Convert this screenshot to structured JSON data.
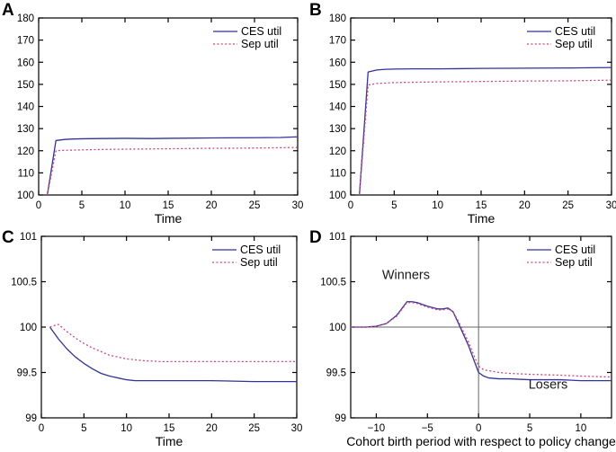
{
  "colors": {
    "ces_line": "#32329b",
    "sep_line": "#d2457f",
    "axis": "#000000",
    "reference_line": "#666666",
    "background": "#ffffff"
  },
  "chart_data": [
    {
      "type": "line",
      "panel_label": "A",
      "title": "",
      "xlabel": "Time",
      "ylabel": "",
      "xlim": [
        0,
        30
      ],
      "ylim": [
        100,
        180
      ],
      "xticks": [
        0,
        5,
        10,
        15,
        20,
        25,
        30
      ],
      "yticks": [
        100,
        110,
        120,
        130,
        140,
        150,
        160,
        170,
        180
      ],
      "grid": false,
      "legend_position": "top-right",
      "series": [
        {
          "name": "CES util",
          "color": "#32329b",
          "dash": "solid",
          "points": [
            [
              1,
              100
            ],
            [
              2,
              124.6
            ],
            [
              3,
              125.1
            ],
            [
              4,
              125.3
            ],
            [
              5,
              125.4
            ],
            [
              7,
              125.5
            ],
            [
              10,
              125.6
            ],
            [
              13,
              125.5
            ],
            [
              15,
              125.6
            ],
            [
              20,
              125.8
            ],
            [
              25,
              125.9
            ],
            [
              28,
              126.0
            ],
            [
              30,
              126.3
            ]
          ]
        },
        {
          "name": "Sep util",
          "color": "#d2457f",
          "dash": "dotted",
          "points": [
            [
              1,
              100
            ],
            [
              2,
              120.0
            ],
            [
              3,
              120.2
            ],
            [
              5,
              120.4
            ],
            [
              8,
              120.6
            ],
            [
              10,
              120.7
            ],
            [
              15,
              120.9
            ],
            [
              20,
              121.1
            ],
            [
              25,
              121.2
            ],
            [
              30,
              121.5
            ]
          ]
        }
      ],
      "reference_lines": [],
      "annotations": []
    },
    {
      "type": "line",
      "panel_label": "B",
      "title": "",
      "xlabel": "Time",
      "ylabel": "",
      "xlim": [
        0,
        30
      ],
      "ylim": [
        100,
        180
      ],
      "xticks": [
        0,
        5,
        10,
        15,
        20,
        25,
        30
      ],
      "yticks": [
        100,
        110,
        120,
        130,
        140,
        150,
        160,
        170,
        180
      ],
      "grid": false,
      "legend_position": "top-right",
      "series": [
        {
          "name": "CES util",
          "color": "#32329b",
          "dash": "solid",
          "points": [
            [
              1,
              100
            ],
            [
              2,
              155.6
            ],
            [
              3,
              156.5
            ],
            [
              4,
              156.8
            ],
            [
              5,
              156.9
            ],
            [
              7,
              157.0
            ],
            [
              10,
              157.0
            ],
            [
              15,
              157.2
            ],
            [
              20,
              157.3
            ],
            [
              25,
              157.4
            ],
            [
              30,
              157.6
            ]
          ]
        },
        {
          "name": "Sep util",
          "color": "#d2457f",
          "dash": "dotted",
          "points": [
            [
              1,
              100
            ],
            [
              2,
              149.7
            ],
            [
              3,
              150.4
            ],
            [
              5,
              150.8
            ],
            [
              8,
              151.0
            ],
            [
              10,
              151.1
            ],
            [
              15,
              151.3
            ],
            [
              20,
              151.5
            ],
            [
              25,
              151.6
            ],
            [
              30,
              151.9
            ]
          ]
        }
      ],
      "reference_lines": [],
      "annotations": []
    },
    {
      "type": "line",
      "panel_label": "C",
      "title": "",
      "xlabel": "Time",
      "ylabel": "",
      "xlim": [
        0,
        30
      ],
      "ylim": [
        99,
        101
      ],
      "xticks": [
        0,
        5,
        10,
        15,
        20,
        25,
        30
      ],
      "yticks": [
        99,
        99.5,
        100,
        100.5,
        101
      ],
      "grid": false,
      "legend_position": "top-right",
      "series": [
        {
          "name": "CES util",
          "color": "#32329b",
          "dash": "solid",
          "points": [
            [
              1,
              100
            ],
            [
              2,
              99.87
            ],
            [
              3,
              99.76
            ],
            [
              4,
              99.67
            ],
            [
              5,
              99.6
            ],
            [
              6,
              99.54
            ],
            [
              7,
              99.49
            ],
            [
              8,
              99.46
            ],
            [
              9,
              99.44
            ],
            [
              10,
              99.42
            ],
            [
              11,
              99.41
            ],
            [
              12,
              99.41
            ],
            [
              15,
              99.41
            ],
            [
              20,
              99.41
            ],
            [
              25,
              99.4
            ],
            [
              30,
              99.4
            ]
          ]
        },
        {
          "name": "Sep util",
          "color": "#d2457f",
          "dash": "dotted",
          "points": [
            [
              1,
              100
            ],
            [
              2,
              100.03
            ],
            [
              3,
              99.95
            ],
            [
              4,
              99.88
            ],
            [
              5,
              99.82
            ],
            [
              6,
              99.77
            ],
            [
              7,
              99.73
            ],
            [
              8,
              99.69
            ],
            [
              9,
              99.67
            ],
            [
              10,
              99.65
            ],
            [
              11,
              99.64
            ],
            [
              12,
              99.63
            ],
            [
              14,
              99.62
            ],
            [
              20,
              99.62
            ],
            [
              25,
              99.62
            ],
            [
              30,
              99.62
            ]
          ]
        }
      ],
      "reference_lines": [],
      "annotations": []
    },
    {
      "type": "line",
      "panel_label": "D",
      "title": "",
      "xlabel": "Cohort birth period with respect to policy change",
      "ylabel": "",
      "xlim": [
        -12.5,
        13
      ],
      "ylim": [
        99,
        101
      ],
      "xticks": [
        -10,
        -5,
        0,
        5,
        10
      ],
      "yticks": [
        99,
        99.5,
        100,
        100.5,
        101
      ],
      "grid": false,
      "legend_position": "top-right",
      "series": [
        {
          "name": "CES util",
          "color": "#32329b",
          "dash": "solid",
          "points": [
            [
              -12.5,
              100
            ],
            [
              -11,
              100
            ],
            [
              -10,
              100.01
            ],
            [
              -9,
              100.04
            ],
            [
              -8,
              100.13
            ],
            [
              -7,
              100.28
            ],
            [
              -6.5,
              100.28
            ],
            [
              -6,
              100.27
            ],
            [
              -5,
              100.23
            ],
            [
              -4,
              100.2
            ],
            [
              -3.5,
              100.2
            ],
            [
              -3,
              100.21
            ],
            [
              -2.5,
              100.17
            ],
            [
              -2,
              100.05
            ],
            [
              -1,
              99.8
            ],
            [
              -0.5,
              99.65
            ],
            [
              0,
              99.5
            ],
            [
              0.5,
              99.46
            ],
            [
              1,
              99.44
            ],
            [
              2,
              99.43
            ],
            [
              3,
              99.43
            ],
            [
              5,
              99.42
            ],
            [
              8,
              99.42
            ],
            [
              10,
              99.41
            ],
            [
              13,
              99.41
            ]
          ]
        },
        {
          "name": "Sep util",
          "color": "#d2457f",
          "dash": "dotted",
          "points": [
            [
              -12.5,
              100
            ],
            [
              -11,
              100
            ],
            [
              -10,
              100.01
            ],
            [
              -9,
              100.04
            ],
            [
              -8,
              100.12
            ],
            [
              -7,
              100.27
            ],
            [
              -6.5,
              100.27
            ],
            [
              -6,
              100.26
            ],
            [
              -5,
              100.22
            ],
            [
              -4,
              100.19
            ],
            [
              -3.5,
              100.19
            ],
            [
              -3,
              100.2
            ],
            [
              -2.5,
              100.17
            ],
            [
              -2,
              100.07
            ],
            [
              -1,
              99.84
            ],
            [
              -0.5,
              99.7
            ],
            [
              0,
              99.57
            ],
            [
              0.5,
              99.53
            ],
            [
              1,
              99.52
            ],
            [
              2,
              99.5
            ],
            [
              3,
              99.49
            ],
            [
              5,
              99.48
            ],
            [
              8,
              99.47
            ],
            [
              10,
              99.46
            ],
            [
              13,
              99.45
            ]
          ]
        }
      ],
      "reference_lines": [
        {
          "orientation": "horizontal",
          "value": 100
        },
        {
          "orientation": "vertical",
          "value": 0
        }
      ],
      "annotations": [
        {
          "text": "Winners",
          "x": -7.1,
          "y": 100.53
        },
        {
          "text": "Losers",
          "x": 6.8,
          "y": 99.32
        }
      ]
    }
  ]
}
